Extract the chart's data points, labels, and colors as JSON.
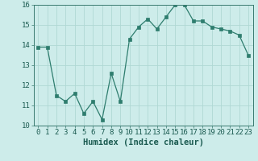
{
  "x": [
    0,
    1,
    2,
    3,
    4,
    5,
    6,
    7,
    8,
    9,
    10,
    11,
    12,
    13,
    14,
    15,
    16,
    17,
    18,
    19,
    20,
    21,
    22,
    23
  ],
  "y": [
    13.9,
    13.9,
    11.5,
    11.2,
    11.6,
    10.6,
    11.2,
    10.3,
    12.6,
    11.2,
    14.3,
    14.9,
    15.3,
    14.8,
    15.4,
    16.0,
    16.0,
    15.2,
    15.2,
    14.9,
    14.8,
    14.7,
    14.5,
    13.5
  ],
  "line_color": "#2e7d6e",
  "marker_color": "#2e7d6e",
  "bg_color": "#cdecea",
  "grid_color": "#b0d8d4",
  "xlabel": "Humidex (Indice chaleur)",
  "ylim": [
    10,
    16
  ],
  "xlim": [
    -0.5,
    23.5
  ],
  "yticks": [
    10,
    11,
    12,
    13,
    14,
    15,
    16
  ],
  "xticks": [
    0,
    1,
    2,
    3,
    4,
    5,
    6,
    7,
    8,
    9,
    10,
    11,
    12,
    13,
    14,
    15,
    16,
    17,
    18,
    19,
    20,
    21,
    22,
    23
  ],
  "xlabel_fontsize": 7.5,
  "tick_fontsize": 6.5,
  "marker_size": 2.2,
  "line_width": 0.9
}
